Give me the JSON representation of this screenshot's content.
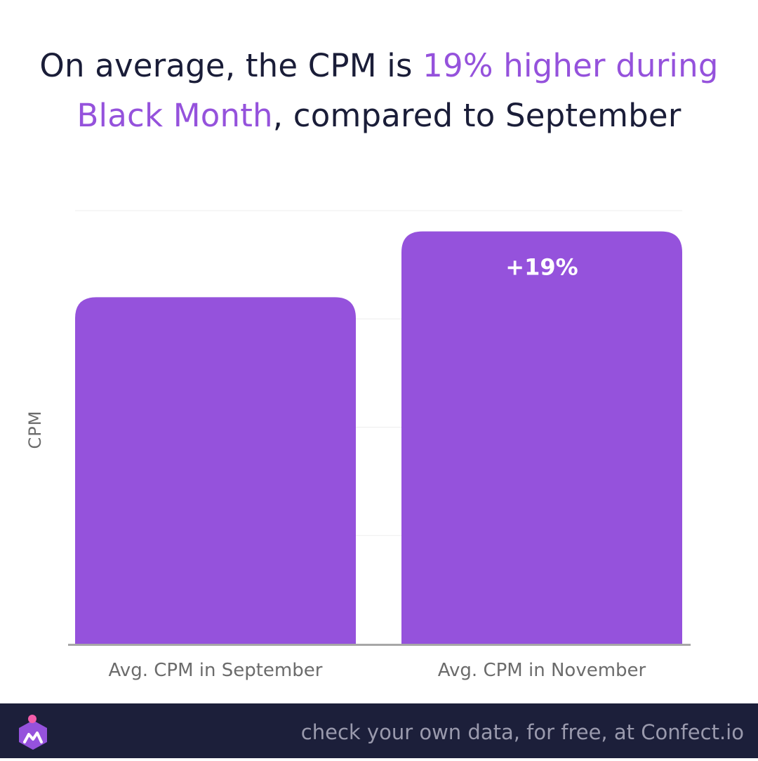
{
  "title": {
    "part1": "On average, the CPM is ",
    "highlight1": "19% higher during",
    "highlight2": "Black Month",
    "part2": ", compared to September"
  },
  "colors": {
    "bar": "#9552dc",
    "title": "#1a1d38",
    "highlight": "#9552dc",
    "footer_bg": "#1c1f3a"
  },
  "chart_data": {
    "type": "bar",
    "categories": [
      "Avg. CPM in September",
      "Avg. CPM in November"
    ],
    "values": [
      100,
      119
    ],
    "data_labels": [
      "",
      "+19%"
    ],
    "title": "",
    "xlabel": "",
    "ylabel": "CPM",
    "ylim": [
      0,
      125
    ],
    "grid": true,
    "show_y_ticks": false
  },
  "footer": {
    "cta": "check your own data, for free, at Confect.io",
    "logo_icon": "confect-logo-icon"
  }
}
